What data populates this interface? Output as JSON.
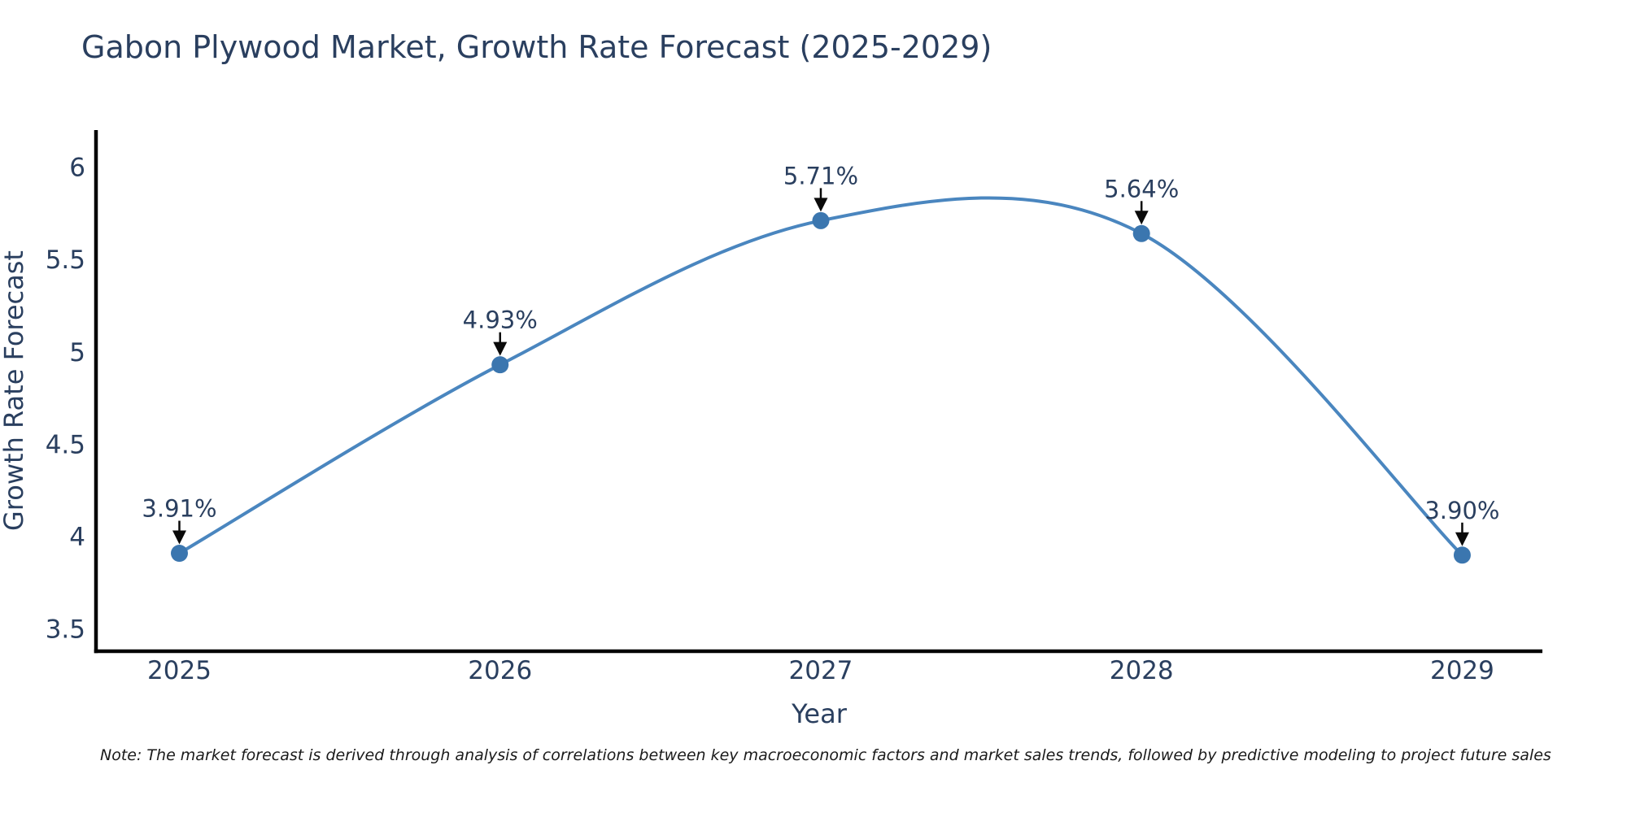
{
  "chart_data": {
    "type": "line",
    "title": "Gabon Plywood Market, Growth Rate Forecast (2025-2029)",
    "xlabel": "Year",
    "ylabel": "Growth Rate Forecast",
    "x": [
      2025,
      2026,
      2027,
      2028,
      2029
    ],
    "values": [
      3.91,
      4.93,
      5.71,
      5.64,
      3.9
    ],
    "point_labels": [
      "3.91%",
      "4.93%",
      "5.71%",
      "5.64%",
      "3.90%"
    ],
    "xticks": [
      2025,
      2026,
      2027,
      2028,
      2029
    ],
    "xtick_labels": [
      "2025",
      "2026",
      "2027",
      "2028",
      "2029"
    ],
    "yticks": [
      3.5,
      4,
      4.5,
      5,
      5.5,
      6
    ],
    "ytick_labels": [
      "3.5",
      "4",
      "4.5",
      "5",
      "5.5",
      "6"
    ],
    "xlim": [
      2024.74,
      2029.25
    ],
    "ylim": [
      3.38,
      6.2
    ],
    "grid": false,
    "legend": "none",
    "curve": "spline",
    "annotation_style": "value-label-with-down-arrow",
    "colors": {
      "line": "#4a86bf",
      "marker": "#3b76af",
      "axis": "#000000",
      "text": "#2a3f5f",
      "arrow": "#0a0a0a",
      "note_text": "#1a1a1a",
      "background": "#ffffff"
    }
  },
  "note": "Note: The market forecast is derived through analysis of correlations between key macroeconomic factors and market sales trends, followed by predictive modeling to project future sales"
}
